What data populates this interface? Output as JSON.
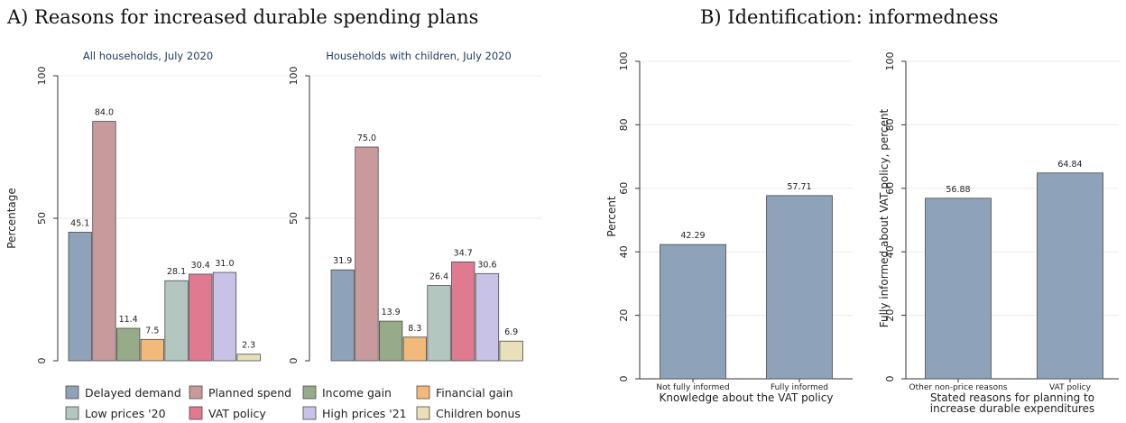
{
  "panel_a_title": "A) Reasons for increased durable spending plans",
  "panel_b_title": "B) Identification: informedness",
  "legend_colors": {
    "Delayed demand": "#8ea2b9",
    "Planned spend": "#c99a9c",
    "Income gain": "#98ab88",
    "Financial gain": "#f2b97a",
    "Low prices '20": "#b3c6c0",
    "VAT policy": "#e07a90",
    "High prices '21": "#c8c3e6",
    "Children bonus": "#e8e0b8"
  },
  "chart_data": [
    {
      "type": "bar",
      "title": "All households, July 2020",
      "ylabel": "Percentage",
      "ylim": [
        0,
        100
      ],
      "yticks": [
        "0",
        "50",
        "100"
      ],
      "categories": [
        "Delayed demand",
        "Planned spend",
        "Income gain",
        "Financial gain",
        "Low prices '20",
        "VAT policy",
        "High prices '21",
        "Children bonus"
      ],
      "values": [
        45.1,
        84.0,
        11.4,
        7.5,
        28.1,
        30.4,
        31.0,
        2.3
      ],
      "labels": [
        "45.1",
        "84.0",
        "11.4",
        "7.5",
        "28.1",
        "30.4",
        "31.0",
        "2.3"
      ],
      "grid": true,
      "legend_position": "bottom"
    },
    {
      "type": "bar",
      "title": "Households with children, July 2020",
      "ylim": [
        0,
        100
      ],
      "yticks": [
        "0",
        "50",
        "100"
      ],
      "categories": [
        "Delayed demand",
        "Planned spend",
        "Income gain",
        "Financial gain",
        "Low prices '20",
        "VAT policy",
        "High prices '21",
        "Children bonus"
      ],
      "values": [
        31.9,
        75.0,
        13.9,
        8.3,
        26.4,
        34.7,
        30.6,
        6.9
      ],
      "labels": [
        "31.9",
        "75.0",
        "13.9",
        "8.3",
        "26.4",
        "34.7",
        "30.6",
        "6.9"
      ],
      "grid": true
    },
    {
      "type": "bar",
      "ylabel": "Percent",
      "xlabel": [
        "Knowledge about the VAT policy"
      ],
      "ylim": [
        0,
        100
      ],
      "yticks": [
        "0",
        "20",
        "40",
        "60",
        "80",
        "100"
      ],
      "categories": [
        "Not fully informed",
        "Fully informed"
      ],
      "values": [
        42.29,
        57.71
      ],
      "labels": [
        "42.29",
        "57.71"
      ],
      "color": "#8ea2b9",
      "grid": true
    },
    {
      "type": "bar",
      "ylabel": "Fully informed about VAT policy, percent",
      "xlabel": [
        "Stated reasons for planning to",
        "increase durable expenditures"
      ],
      "ylim": [
        0,
        100
      ],
      "yticks": [
        "0",
        "20",
        "40",
        "60",
        "80",
        "100"
      ],
      "categories": [
        "Other non-price reasons",
        "VAT policy"
      ],
      "values": [
        56.88,
        64.84
      ],
      "labels": [
        "56.88",
        "64.84"
      ],
      "color": "#8ea2b9",
      "grid": true
    }
  ]
}
